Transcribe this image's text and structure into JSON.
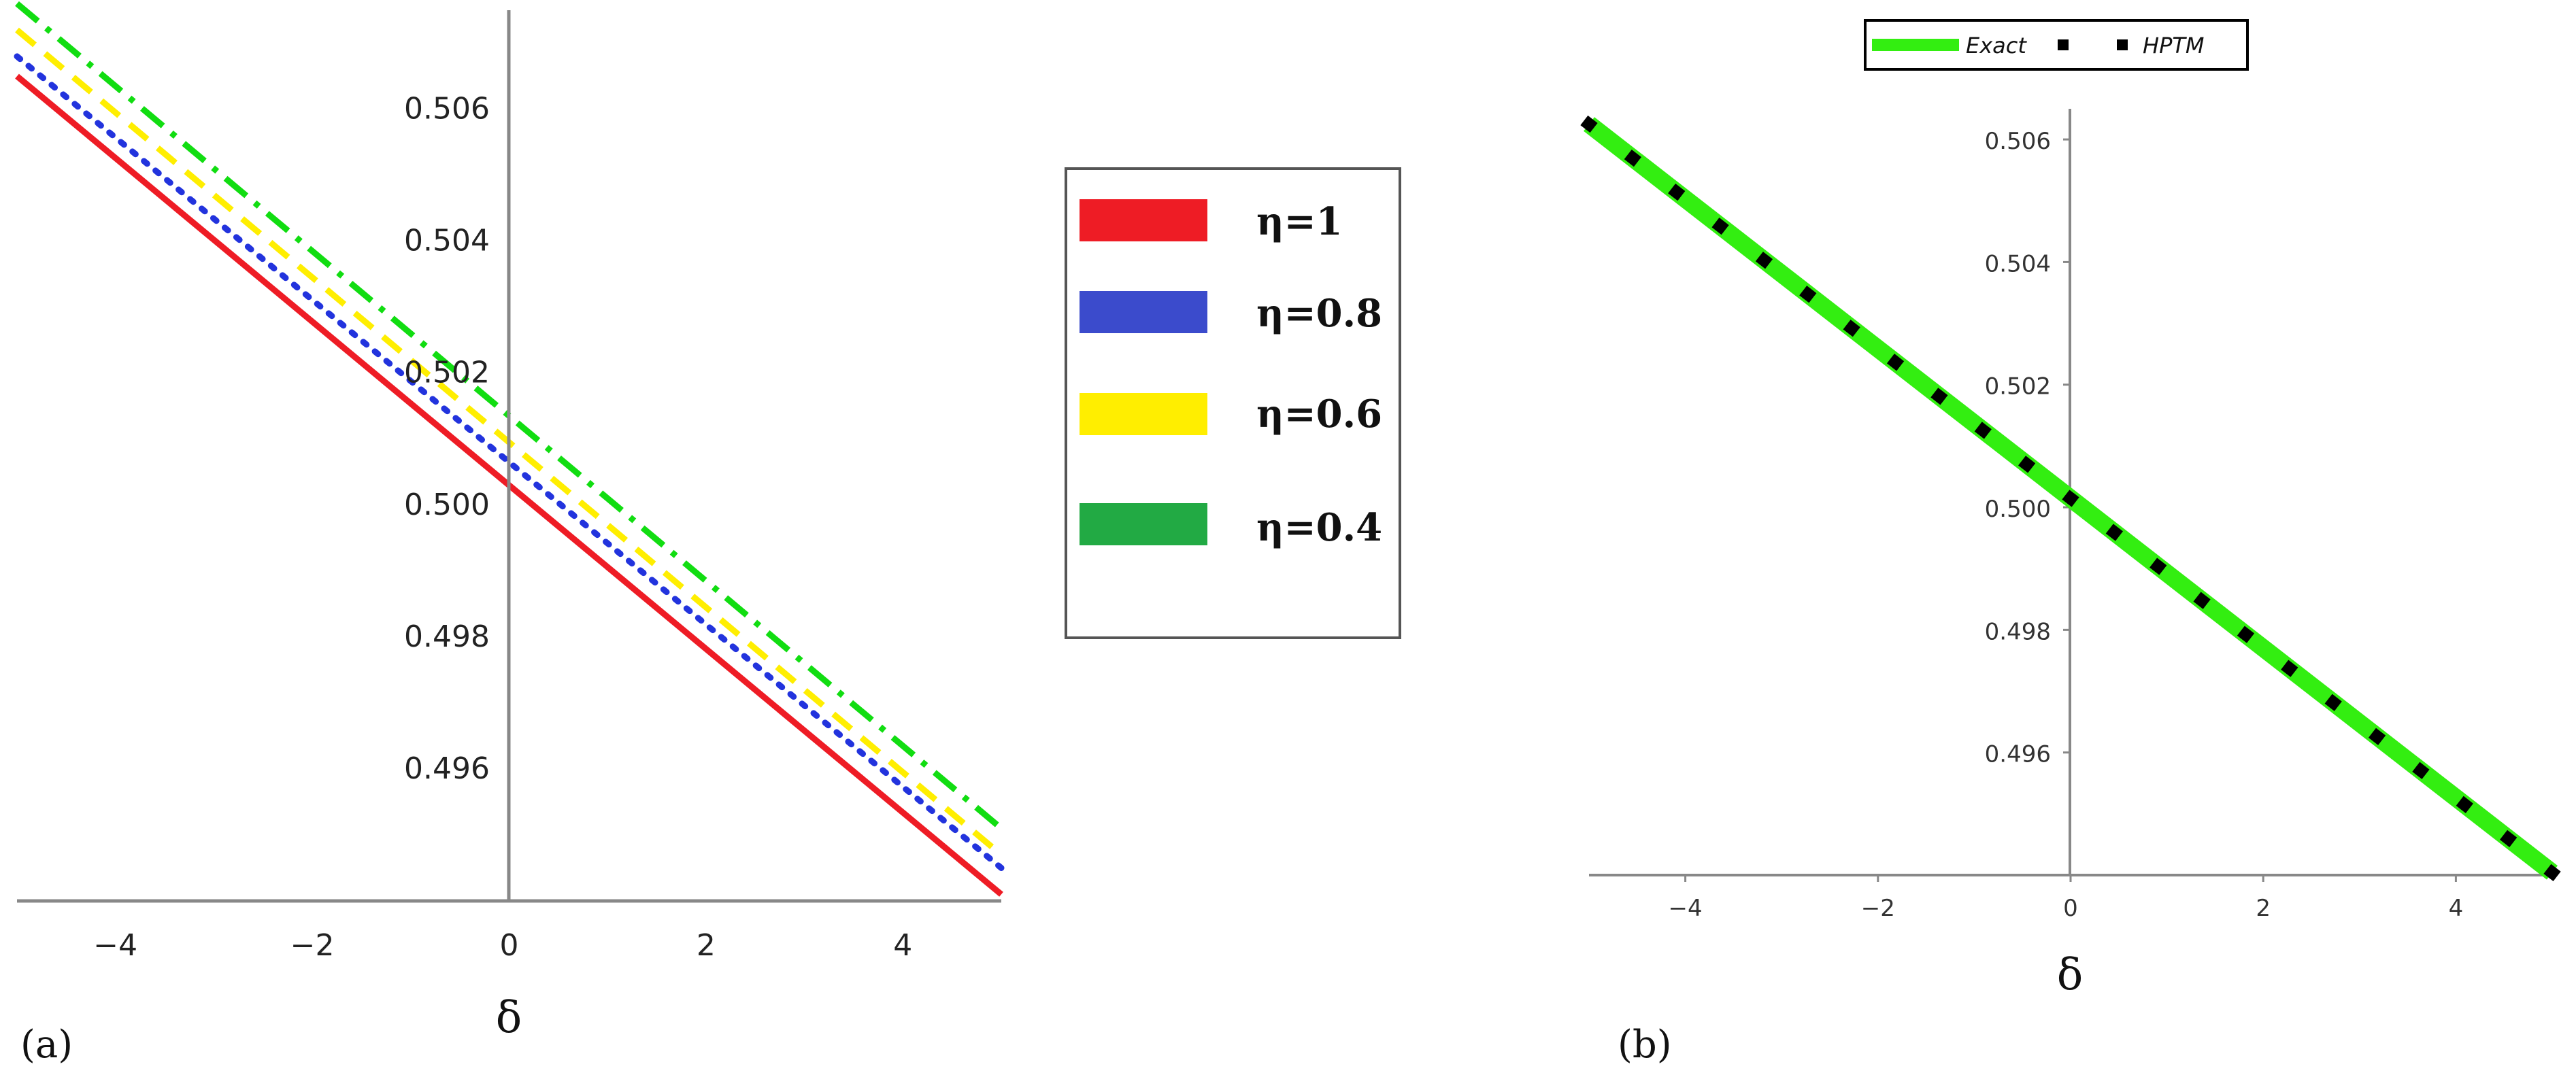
{
  "chart_data": [
    {
      "panel_label": "(a)",
      "type": "line",
      "xlabel": "δ",
      "ylabel": "",
      "xlim": [
        -5,
        5
      ],
      "ylim": [
        0.494,
        0.5075
      ],
      "xticks": [
        "−4",
        "−2",
        "0",
        "2",
        "4"
      ],
      "yticks": [
        "0.496",
        "0.498",
        "0.500",
        "0.502",
        "0.504",
        "0.506"
      ],
      "x": [
        -5,
        5
      ],
      "series": [
        {
          "name": "η=1",
          "values": [
            0.5065,
            0.4941
          ],
          "color": "#ee1c25",
          "style": "solid"
        },
        {
          "name": "η=0.8",
          "values": [
            0.5068,
            0.4945
          ],
          "color": "#2233dd",
          "style": "dotted"
        },
        {
          "name": "η=0.6",
          "values": [
            0.5072,
            0.4947
          ],
          "color": "#ffee00",
          "style": "dashed"
        },
        {
          "name": "η=0.4",
          "values": [
            0.5076,
            0.4951
          ],
          "color": "#11dd11",
          "style": "dashdot"
        }
      ],
      "legend_swatches": [
        "#ee1c25",
        "#3b4bcc",
        "#ffee00",
        "#22aa44"
      ],
      "legend_position": "right, outside plot",
      "grid": false
    },
    {
      "panel_label": "(b)",
      "type": "line",
      "xlabel": "δ",
      "ylabel": "",
      "xlim": [
        -5,
        5
      ],
      "ylim": [
        0.494,
        0.5065
      ],
      "xticks": [
        "−4",
        "−2",
        "0",
        "2",
        "4"
      ],
      "yticks": [
        "0.496",
        "0.498",
        "0.500",
        "0.502",
        "0.504",
        "0.506"
      ],
      "x": [
        -5,
        5
      ],
      "series": [
        {
          "name": "Exact",
          "values": [
            0.50625,
            0.49404
          ],
          "color": "#33ee11",
          "style": "solid"
        },
        {
          "name": "HPTM",
          "values": [
            0.50625,
            0.49404
          ],
          "color": "#000000",
          "style": "square-dots"
        }
      ],
      "legend_position": "top-center",
      "grid": false
    }
  ]
}
